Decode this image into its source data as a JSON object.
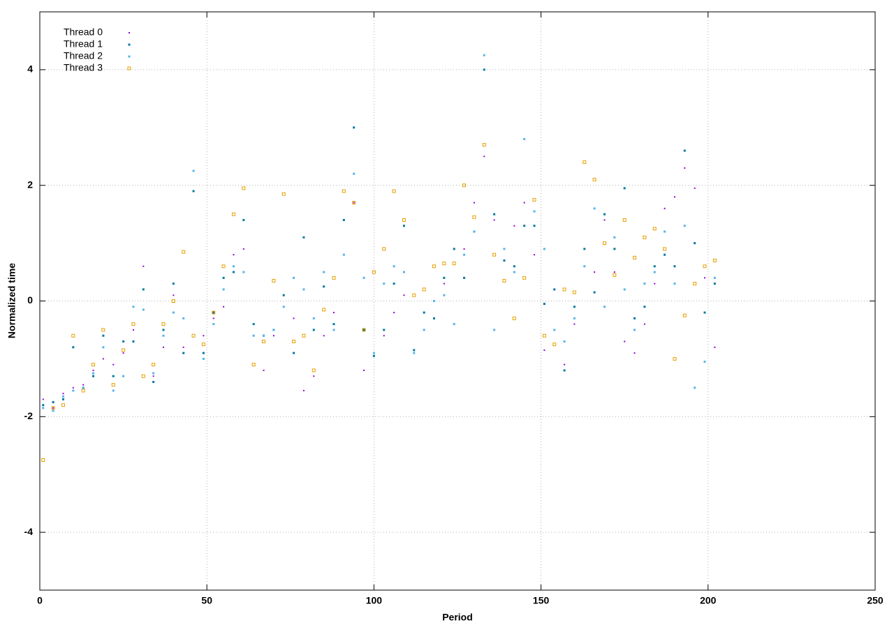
{
  "chart_data": {
    "type": "scatter",
    "x_label": "Period",
    "y_label": "Normalized time",
    "xlim": [
      0,
      250
    ],
    "ylim": [
      -5,
      5
    ],
    "xticks": [
      0,
      50,
      100,
      150,
      200,
      250
    ],
    "yticks": [
      -4,
      -2,
      0,
      2,
      4
    ],
    "grid": true,
    "legend": "top-left",
    "x": [
      1,
      4,
      7,
      10,
      13,
      16,
      19,
      22,
      25,
      28,
      31,
      34,
      37,
      40,
      43,
      46,
      49,
      52,
      55,
      58,
      61,
      64,
      67,
      70,
      73,
      76,
      79,
      82,
      85,
      88,
      91,
      94,
      97,
      100,
      103,
      106,
      109,
      112,
      115,
      118,
      121,
      124,
      127,
      130,
      133,
      136,
      139,
      142,
      145,
      148,
      151,
      154,
      157,
      160,
      163,
      166,
      169,
      172,
      175,
      178,
      181,
      184,
      187,
      190,
      193,
      196,
      199,
      202
    ],
    "series": [
      {
        "name": "Thread 0",
        "color": "#9400d3",
        "marker": "dot",
        "values": [
          -1.7,
          -1.85,
          -1.6,
          -1.5,
          -1.45,
          -1.2,
          -1.0,
          -1.1,
          -0.9,
          -0.5,
          0.6,
          -1.3,
          -0.8,
          0.1,
          -0.8,
          1.9,
          -0.6,
          -0.3,
          -0.1,
          0.8,
          0.9,
          -0.4,
          -1.2,
          -0.6,
          -0.1,
          -0.3,
          -1.55,
          -1.3,
          -0.6,
          -0.2,
          0.8,
          1.7,
          -1.2,
          -0.9,
          -0.6,
          -0.2,
          0.1,
          -0.9,
          -0.5,
          -0.3,
          0.3,
          0.9,
          0.9,
          1.7,
          2.5,
          1.4,
          0.7,
          1.3,
          1.7,
          0.8,
          -0.85,
          0.2,
          -1.1,
          -0.4,
          0.9,
          0.5,
          1.4,
          0.5,
          -0.7,
          -0.9,
          -0.4,
          0.3,
          1.6,
          1.8,
          2.3,
          1.95,
          0.4,
          -0.8
        ]
      },
      {
        "name": "Thread 1",
        "color": "#00789e",
        "marker": "filled-square",
        "values": [
          -1.8,
          -1.75,
          -1.7,
          -0.8,
          -1.5,
          -1.3,
          -0.6,
          -1.3,
          -0.7,
          -0.7,
          0.2,
          -1.4,
          -0.5,
          0.3,
          -0.9,
          1.9,
          -0.9,
          -0.2,
          0.4,
          0.5,
          1.4,
          -0.4,
          -0.6,
          -0.5,
          0.1,
          -0.9,
          1.1,
          -0.5,
          0.25,
          -0.4,
          1.4,
          3.0,
          -0.5,
          -0.95,
          -0.5,
          0.3,
          1.3,
          -0.85,
          -0.2,
          -0.3,
          0.4,
          0.9,
          0.4,
          1.2,
          4.0,
          1.5,
          0.7,
          0.6,
          1.3,
          1.3,
          -0.05,
          0.2,
          -1.2,
          -0.1,
          0.9,
          0.15,
          1.5,
          0.9,
          1.95,
          -0.3,
          -0.1,
          0.6,
          0.8,
          0.6,
          2.6,
          1.0,
          -0.2,
          0.3
        ]
      },
      {
        "name": "Thread 2",
        "color": "#56b4e9",
        "marker": "filled-square",
        "values": [
          -1.85,
          -1.9,
          -1.65,
          -1.55,
          -1.5,
          -1.25,
          -0.8,
          -1.55,
          -1.3,
          -0.1,
          -0.15,
          -1.25,
          -0.6,
          -0.2,
          -0.3,
          2.25,
          -1.0,
          -0.4,
          0.2,
          0.6,
          0.5,
          -0.6,
          -0.6,
          -0.5,
          -0.1,
          0.4,
          0.2,
          -0.3,
          0.5,
          -0.5,
          0.8,
          2.2,
          0.4,
          -0.9,
          0.3,
          0.6,
          0.5,
          -0.9,
          -0.5,
          0.0,
          0.1,
          -0.4,
          0.8,
          1.2,
          4.25,
          -0.5,
          0.9,
          0.5,
          2.8,
          1.55,
          0.9,
          -0.5,
          -0.7,
          -0.3,
          0.6,
          1.6,
          -0.1,
          1.1,
          0.2,
          -0.5,
          0.3,
          0.5,
          1.2,
          0.3,
          1.3,
          -1.5,
          -1.05,
          0.4
        ]
      },
      {
        "name": "Thread 3",
        "color": "#e69f00",
        "marker": "open-square",
        "values": [
          -2.75,
          -1.85,
          -1.8,
          -0.6,
          -1.55,
          -1.1,
          -0.5,
          -1.45,
          -0.85,
          -0.4,
          -1.3,
          -1.1,
          -0.4,
          0.0,
          0.85,
          -0.6,
          -0.75,
          -0.2,
          0.6,
          1.5,
          1.95,
          -1.1,
          -0.7,
          0.35,
          1.85,
          -0.7,
          -0.6,
          -1.2,
          -0.15,
          0.4,
          1.9,
          1.7,
          -0.5,
          0.5,
          0.9,
          1.9,
          1.4,
          0.1,
          0.2,
          0.6,
          0.65,
          0.65,
          2.0,
          1.45,
          2.7,
          0.8,
          0.35,
          -0.3,
          0.4,
          1.75,
          -0.6,
          -0.75,
          0.2,
          0.15,
          2.4,
          2.1,
          1.0,
          0.45,
          1.4,
          0.75,
          1.1,
          1.25,
          0.9,
          -1.0,
          -0.25,
          0.3,
          0.6,
          0.7
        ]
      }
    ]
  }
}
